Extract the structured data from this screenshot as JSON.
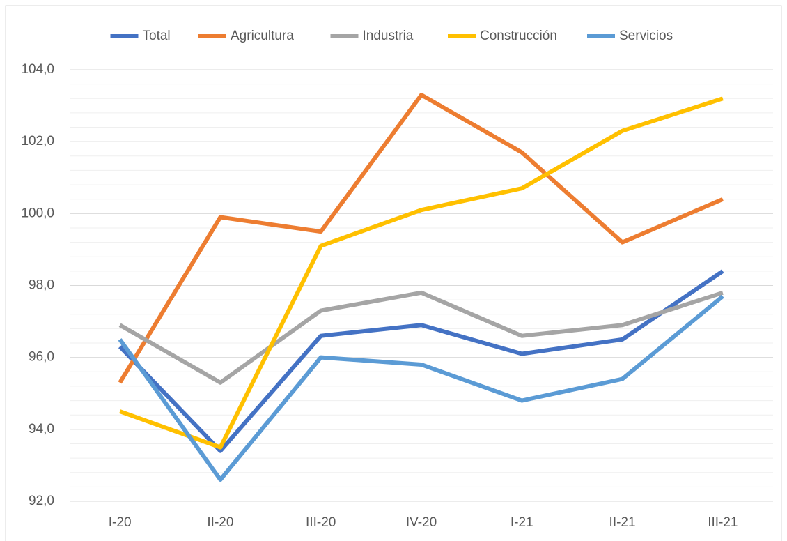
{
  "chart_data": {
    "type": "line",
    "categories": [
      "I-20",
      "II-20",
      "III-20",
      "IV-20",
      "I-21",
      "II-21",
      "III-21"
    ],
    "series": [
      {
        "name": "Total",
        "color": "#4472c4",
        "values": [
          96.3,
          93.4,
          96.6,
          96.9,
          96.1,
          96.5,
          98.4
        ]
      },
      {
        "name": "Agricultura",
        "color": "#ed7d31",
        "values": [
          95.3,
          99.9,
          99.5,
          103.3,
          101.7,
          99.2,
          100.4
        ]
      },
      {
        "name": "Industria",
        "color": "#a5a5a5",
        "values": [
          96.9,
          95.3,
          97.3,
          97.8,
          96.6,
          96.9,
          97.8
        ]
      },
      {
        "name": "Construcción",
        "color": "#ffc000",
        "values": [
          94.5,
          93.5,
          99.1,
          100.1,
          100.7,
          102.3,
          103.2
        ]
      },
      {
        "name": "Servicios",
        "color": "#5b9bd5",
        "values": [
          96.5,
          92.6,
          96.0,
          95.8,
          94.8,
          95.4,
          97.7
        ]
      }
    ],
    "ylim": [
      92,
      104
    ],
    "yticks": [
      {
        "value": 92,
        "label": "92,0"
      },
      {
        "value": 94,
        "label": "94,0"
      },
      {
        "value": 96,
        "label": "96,0"
      },
      {
        "value": 98,
        "label": "98,0"
      },
      {
        "value": 100,
        "label": "100,0"
      },
      {
        "value": 102,
        "label": "102,0"
      },
      {
        "value": 104,
        "label": "104,0"
      }
    ],
    "grid": true,
    "minor_grid": true,
    "legend": "top"
  }
}
